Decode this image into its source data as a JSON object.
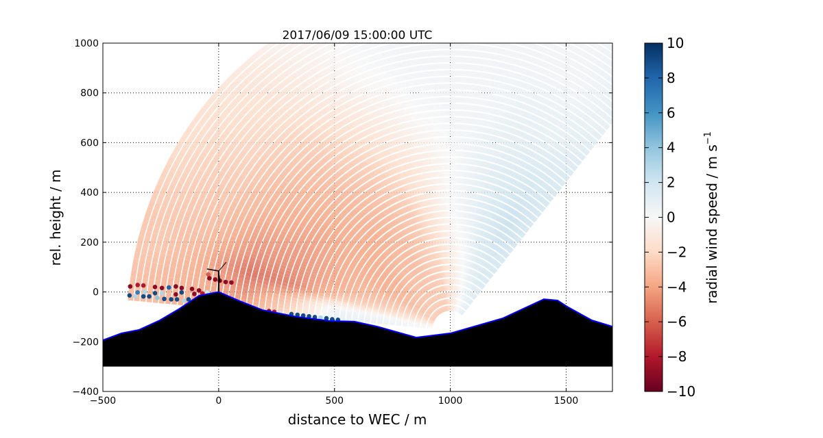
{
  "chart_data": {
    "type": "heatmap",
    "title": "2017/06/09 15:00:00 UTC",
    "xlabel": "distance to WEC / m",
    "ylabel": "rel. height / m",
    "xlim": [
      -500,
      1700
    ],
    "ylim": [
      -400,
      1000
    ],
    "xticks": [
      -500,
      0,
      500,
      1000,
      1500
    ],
    "yticks": [
      -400,
      -200,
      0,
      200,
      400,
      600,
      800,
      1000
    ],
    "xtick_labels": [
      "−500",
      "0",
      "500",
      "1000",
      "1500"
    ],
    "ytick_labels": [
      "−400",
      "−200",
      "0",
      "200",
      "400",
      "600",
      "800",
      "1000"
    ],
    "grid": true,
    "colormap": "RdBu",
    "colorbar": {
      "label": "radial wind speed / m s",
      "label_superscript": "−1",
      "range": [
        -10,
        10
      ],
      "ticks": [
        -10,
        -8,
        -6,
        -4,
        -2,
        0,
        2,
        4,
        6,
        8,
        10
      ],
      "tick_labels": [
        "−10",
        "−8",
        "−6",
        "−4",
        "−2",
        "0",
        "2",
        "4",
        "6",
        "8",
        "10"
      ],
      "colors": [
        "#67001f",
        "#b2182b",
        "#d6604d",
        "#f4a582",
        "#fddbc7",
        "#f7f7f7",
        "#d1e5f0",
        "#92c5de",
        "#4393c3",
        "#2166ac",
        "#053061"
      ]
    },
    "scan": {
      "lidar_position": [
        1000,
        -155
      ],
      "elevation_angles_deg": [
        50,
        60,
        70,
        80,
        90,
        100,
        110,
        120,
        130,
        140,
        150,
        160,
        165,
        170,
        175
      ],
      "ranges_m": [
        100,
        300,
        500,
        700,
        900,
        1100,
        1300,
        1450
      ],
      "radial_wind_speed": [
        [
          1.5,
          2,
          2,
          2,
          1.5,
          1,
          1,
          1
        ],
        [
          1,
          2,
          2.5,
          2,
          1,
          0.5,
          0.5,
          0.5
        ],
        [
          0,
          1.5,
          2,
          1.5,
          1,
          0.5,
          0.5,
          0.5
        ],
        [
          -1,
          0,
          1,
          1,
          0.5,
          0.5,
          0.5,
          0.5
        ],
        [
          -2,
          -1,
          0,
          0,
          0.5,
          0.5,
          0.5,
          0.5
        ],
        [
          -3,
          -2.5,
          -1.5,
          -1,
          0,
          0.5,
          0.5,
          0.5
        ],
        [
          -3,
          -3,
          -3,
          -2,
          -1,
          0,
          0.3,
          0.3
        ],
        [
          -3,
          -3.5,
          -3.5,
          -3,
          -2,
          -1,
          -0.5,
          0
        ],
        [
          -3,
          -3.5,
          -4,
          -3.5,
          -3,
          -2,
          -1.5,
          -1
        ],
        [
          -3,
          -4,
          -4,
          -4,
          -3.5,
          -2.5,
          -2,
          -1.5
        ],
        [
          -3,
          -4,
          -4,
          -4.5,
          -4,
          -3,
          -2.5,
          -2
        ],
        [
          -2,
          -3,
          -4,
          -5,
          -5,
          -3.5,
          -3,
          -3
        ],
        [
          -1,
          -2,
          -3,
          -5.5,
          -6,
          -4,
          -3,
          -3
        ],
        [
          0,
          0.5,
          0.5,
          -3,
          -5,
          -4,
          -3.5,
          -3
        ],
        [
          0,
          1,
          1,
          -2,
          -4,
          -4,
          -3.5,
          -3.5
        ]
      ]
    },
    "near_ground_points": [
      [
        -382,
        22,
        -9
      ],
      [
        -350,
        28,
        -8
      ],
      [
        -325,
        26,
        -8
      ],
      [
        -275,
        20,
        -9
      ],
      [
        -245,
        16,
        -9
      ],
      [
        -215,
        18,
        8
      ],
      [
        -185,
        22,
        -9
      ],
      [
        -160,
        16,
        -9
      ],
      [
        -115,
        12,
        -9
      ],
      [
        -85,
        6,
        -9
      ],
      [
        -382,
        -4,
        -3
      ],
      [
        -350,
        -2,
        7
      ],
      [
        -320,
        0,
        3
      ],
      [
        -275,
        -5,
        9
      ],
      [
        -245,
        -5,
        3
      ],
      [
        -185,
        -10,
        -9
      ],
      [
        -160,
        -2,
        9
      ],
      [
        -105,
        -8,
        -9
      ],
      [
        -70,
        -6,
        -8
      ],
      [
        -50,
        -2,
        2
      ],
      [
        -385,
        -14,
        9
      ],
      [
        -360,
        -18,
        3
      ],
      [
        -325,
        -18,
        9
      ],
      [
        -300,
        -18,
        9
      ],
      [
        -265,
        -24,
        4
      ],
      [
        -235,
        -28,
        9
      ],
      [
        -205,
        -30,
        9
      ],
      [
        -180,
        -30,
        9
      ],
      [
        -150,
        -35,
        3
      ],
      [
        -130,
        -30,
        9
      ],
      [
        -45,
        70,
        -6
      ],
      [
        -40,
        55,
        -9
      ],
      [
        -15,
        50,
        -9
      ],
      [
        5,
        45,
        -9
      ],
      [
        30,
        40,
        -9
      ],
      [
        55,
        38,
        -9
      ],
      [
        217,
        -77,
        -9
      ],
      [
        240,
        -80,
        -8
      ],
      [
        265,
        -84,
        2
      ],
      [
        314,
        -89,
        9
      ],
      [
        340,
        -92,
        9
      ],
      [
        365,
        -95,
        9
      ],
      [
        390,
        -98,
        9
      ],
      [
        415,
        -101,
        9
      ],
      [
        440,
        -103,
        3
      ],
      [
        465,
        -106,
        9
      ],
      [
        490,
        -110,
        9
      ],
      [
        515,
        -112,
        9
      ],
      [
        540,
        -114,
        1
      ]
    ],
    "terrain_profile": [
      [
        -500,
        -194
      ],
      [
        -420,
        -166
      ],
      [
        -343,
        -152
      ],
      [
        -254,
        -114
      ],
      [
        -174,
        -70
      ],
      [
        -85,
        -15
      ],
      [
        0,
        0
      ],
      [
        92,
        -37
      ],
      [
        190,
        -73
      ],
      [
        338,
        -100
      ],
      [
        486,
        -117
      ],
      [
        586,
        -119
      ],
      [
        684,
        -139
      ],
      [
        853,
        -183
      ],
      [
        1001,
        -166
      ],
      [
        1226,
        -106
      ],
      [
        1404,
        -29
      ],
      [
        1463,
        -34
      ],
      [
        1504,
        -59
      ],
      [
        1611,
        -114
      ],
      [
        1700,
        -139
      ]
    ],
    "terrain_base": -300,
    "terrain_color": "#000000",
    "terrain_outline_color": "#0000ff",
    "turbine": {
      "x": 0,
      "hub_height": 84
    }
  }
}
